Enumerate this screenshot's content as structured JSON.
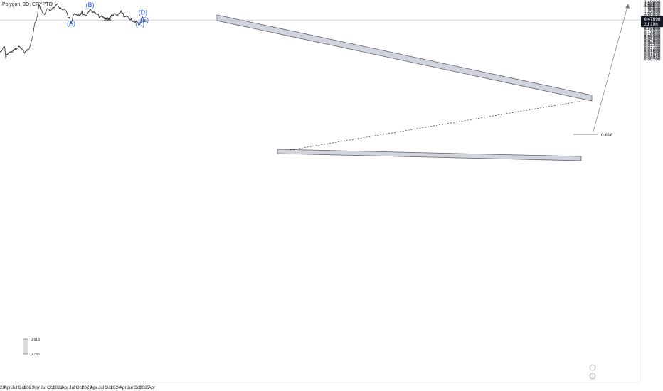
{
  "header": {
    "title": "Polygon, 3D, CRYPTO"
  },
  "chart_data": {
    "type": "candlestick",
    "symbol": "Polygon",
    "interval": "3D",
    "exchange": "CRYPTO",
    "currency": "USD",
    "scale": "log",
    "grid": false,
    "y_ticks": [
      "3.40000",
      "2.80000",
      "2.30000",
      "1.90000",
      "1.50000",
      "1.25000",
      "1.00000",
      "0.80000",
      "0.65000",
      "0.53000",
      "0.43000",
      "0.35000",
      "0.29000",
      "0.24000",
      "0.20000",
      "0.16000",
      "0.13000",
      "0.10500",
      "0.08500",
      "0.07000",
      "0.05800",
      "0.04800",
      "0.04000",
      "0.03300",
      "0.02700",
      "0.02200",
      "0.01800",
      "0.01500",
      "0.01250",
      "0.01030",
      "0.00850",
      "0.00700"
    ],
    "x_ticks": [
      "2020",
      "Apr",
      "Jul",
      "Oct",
      "2021",
      "Apr",
      "Jul",
      "Oct",
      "2022",
      "Apr",
      "Jul",
      "Oct",
      "2023",
      "Apr",
      "Jul",
      "Oct",
      "2024",
      "Apr",
      "Jul",
      "Oct",
      "2025",
      "Apr"
    ],
    "last_price": "0.47898",
    "countdown": "2d 19h",
    "price_path": [
      [
        "2020-01-01",
        0.0155
      ],
      [
        "2020-01-20",
        0.0165
      ],
      [
        "2020-02-15",
        0.025
      ],
      [
        "2020-03-01",
        0.027
      ],
      [
        "2020-03-13",
        0.0095
      ],
      [
        "2020-03-18",
        0.0068
      ],
      [
        "2020-03-25",
        0.0115
      ],
      [
        "2020-04-10",
        0.012
      ],
      [
        "2020-05-01",
        0.015
      ],
      [
        "2020-05-20",
        0.016
      ],
      [
        "2020-06-05",
        0.015
      ],
      [
        "2020-06-20",
        0.019
      ],
      [
        "2020-07-01",
        0.02
      ],
      [
        "2020-07-15",
        0.021
      ],
      [
        "2020-08-01",
        0.021
      ],
      [
        "2020-08-20",
        0.025
      ],
      [
        "2020-09-01",
        0.03
      ],
      [
        "2020-09-15",
        0.024
      ],
      [
        "2020-10-01",
        0.021
      ],
      [
        "2020-10-15",
        0.019
      ],
      [
        "2020-11-01",
        0.016
      ],
      [
        "2020-11-06",
        0.013
      ],
      [
        "2020-11-20",
        0.016
      ],
      [
        "2020-12-05",
        0.018
      ],
      [
        "2020-12-20",
        0.02
      ],
      [
        "2021-01-01",
        0.02
      ],
      [
        "2021-01-15",
        0.028
      ],
      [
        "2021-02-01",
        0.045
      ],
      [
        "2021-02-10",
        0.06
      ],
      [
        "2021-02-20",
        0.09
      ],
      [
        "2021-03-01",
        0.14
      ],
      [
        "2021-03-10",
        0.25
      ],
      [
        "2021-03-15",
        0.32
      ],
      [
        "2021-03-20",
        0.38
      ],
      [
        "2021-04-01",
        0.4
      ],
      [
        "2021-04-10",
        0.5
      ],
      [
        "2021-04-20",
        0.9
      ],
      [
        "2021-04-27",
        1.2
      ],
      [
        "2021-05-05",
        2.0
      ],
      [
        "2021-05-10",
        2.5
      ],
      [
        "2021-05-18",
        2.2
      ],
      [
        "2021-05-25",
        1.6
      ],
      [
        "2021-06-05",
        1.5
      ],
      [
        "2021-06-20",
        1.15
      ],
      [
        "2021-07-01",
        1.0
      ],
      [
        "2021-07-10",
        0.92
      ],
      [
        "2021-07-20",
        0.85
      ],
      [
        "2021-08-01",
        1.1
      ],
      [
        "2021-08-15",
        1.5
      ],
      [
        "2021-09-01",
        1.7
      ],
      [
        "2021-09-15",
        1.5
      ],
      [
        "2021-10-01",
        1.3
      ],
      [
        "2021-10-15",
        1.5
      ],
      [
        "2021-11-01",
        1.85
      ],
      [
        "2021-11-15",
        1.8
      ],
      [
        "2021-12-01",
        2.2
      ],
      [
        "2021-12-27",
        2.8
      ],
      [
        "2022-01-10",
        2.2
      ],
      [
        "2022-01-25",
        1.6
      ],
      [
        "2022-02-10",
        1.8
      ],
      [
        "2022-02-25",
        1.5
      ],
      [
        "2022-03-15",
        1.5
      ],
      [
        "2022-03-30",
        1.65
      ],
      [
        "2022-04-15",
        1.3
      ],
      [
        "2022-05-01",
        1.0
      ],
      [
        "2022-05-12",
        0.6
      ],
      [
        "2022-05-30",
        0.62
      ],
      [
        "2022-06-18",
        0.33
      ],
      [
        "2022-07-01",
        0.45
      ],
      [
        "2022-07-15",
        0.75
      ],
      [
        "2022-07-30",
        0.95
      ],
      [
        "2022-08-15",
        0.9
      ],
      [
        "2022-09-01",
        0.82
      ],
      [
        "2022-09-15",
        0.85
      ],
      [
        "2022-10-01",
        0.8
      ],
      [
        "2022-10-20",
        0.9
      ],
      [
        "2022-11-05",
        1.25
      ],
      [
        "2022-11-10",
        0.85
      ],
      [
        "2022-11-25",
        0.9
      ],
      [
        "2022-12-10",
        0.85
      ],
      [
        "2022-12-30",
        0.75
      ],
      [
        "2023-01-10",
        0.95
      ],
      [
        "2023-01-25",
        1.15
      ],
      [
        "2023-02-10",
        1.4
      ],
      [
        "2023-02-18",
        1.55
      ],
      [
        "2023-03-01",
        1.3
      ],
      [
        "2023-03-15",
        1.1
      ],
      [
        "2023-03-30",
        1.15
      ],
      [
        "2023-04-15",
        1.1
      ],
      [
        "2023-05-01",
        0.95
      ],
      [
        "2023-05-15",
        0.9
      ],
      [
        "2023-06-01",
        0.9
      ],
      [
        "2023-06-10",
        0.6
      ],
      [
        "2023-06-25",
        0.65
      ],
      [
        "2023-07-10",
        0.75
      ],
      [
        "2023-07-25",
        0.7
      ],
      [
        "2023-08-15",
        0.58
      ],
      [
        "2023-09-01",
        0.55
      ],
      [
        "2023-09-15",
        0.52
      ],
      [
        "2023-10-01",
        0.55
      ],
      [
        "2023-10-15",
        0.52
      ],
      [
        "2023-11-01",
        0.68
      ],
      [
        "2023-11-15",
        0.85
      ],
      [
        "2023-12-01",
        0.78
      ],
      [
        "2023-12-15",
        0.95
      ],
      [
        "2024-01-01",
        0.95
      ],
      [
        "2024-01-15",
        0.8
      ],
      [
        "2024-02-01",
        0.85
      ],
      [
        "2024-02-15",
        0.95
      ],
      [
        "2024-03-01",
        1.1
      ],
      [
        "2024-03-13",
        1.28
      ],
      [
        "2024-03-25",
        1.0
      ],
      [
        "2024-04-10",
        0.95
      ],
      [
        "2024-04-15",
        0.7
      ],
      [
        "2024-05-01",
        0.7
      ],
      [
        "2024-05-15",
        0.72
      ],
      [
        "2024-06-01",
        0.72
      ],
      [
        "2024-06-15",
        0.6
      ],
      [
        "2024-07-05",
        0.48
      ],
      [
        "2024-07-20",
        0.55
      ],
      [
        "2024-08-05",
        0.4
      ],
      [
        "2024-08-20",
        0.42
      ],
      [
        "2024-09-05",
        0.38
      ],
      [
        "2024-09-25",
        0.42
      ],
      [
        "2024-10-10",
        0.36
      ],
      [
        "2024-10-25",
        0.32
      ],
      [
        "2024-11-05",
        0.3
      ],
      [
        "2024-11-15",
        0.38
      ],
      [
        "2024-12-01",
        0.6
      ],
      [
        "2024-12-06",
        0.68
      ],
      [
        "2024-12-20",
        0.5
      ],
      [
        "2025-01-01",
        0.48
      ],
      [
        "2025-01-12",
        0.47898
      ]
    ],
    "annotations": {
      "waves": [
        {
          "label": "(A)",
          "date": "2022-06-18",
          "price": 0.26
        },
        {
          "label": "(B)",
          "date": "2023-02-12",
          "price": 1.95
        },
        {
          "label": "(C)",
          "date": "2024-11-05",
          "price": 0.245
        },
        {
          "label": "(D)",
          "date": "2024-12-12",
          "price": 0.86
        },
        {
          "label": "(E)",
          "date": "2025-01-01",
          "price": 0.38
        }
      ],
      "liquidity_label": {
        "text": "$$$",
        "date": "2023-09-20",
        "price": 0.455
      },
      "fib_label": {
        "text": "0.618",
        "value": 0.618
      },
      "box_labels": [
        "0.618",
        "0.786"
      ]
    }
  }
}
